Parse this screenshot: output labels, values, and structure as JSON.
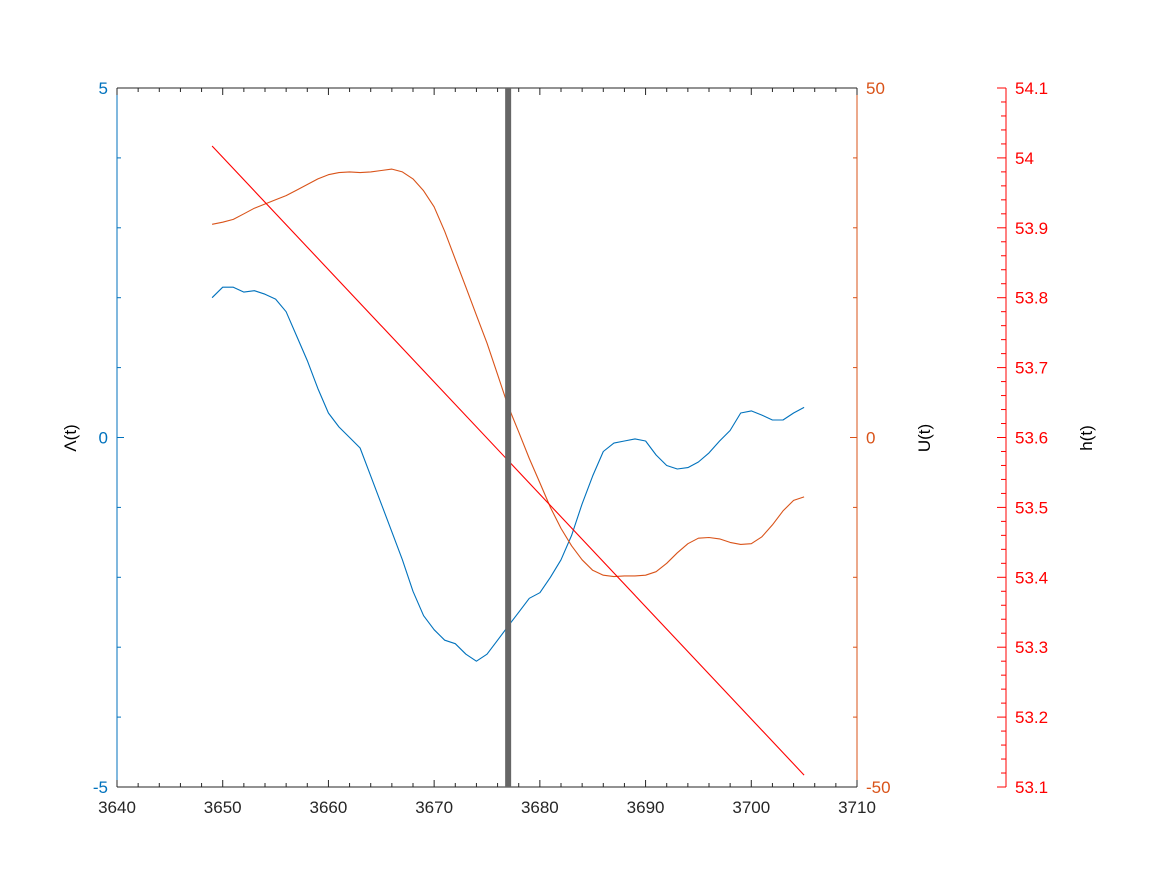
{
  "chart_data": {
    "type": "line",
    "title": "",
    "marker_x": 3677,
    "colors": {
      "lambda": "#0072BD",
      "U": "#D95319",
      "h": "#FF0000",
      "marker": "#666666",
      "xaxis": "#262626"
    },
    "x_axis": {
      "xlim": [
        3640,
        3710
      ],
      "ticks": [
        "3640",
        "3650",
        "3660",
        "3670",
        "3680",
        "3690",
        "3700",
        "3710"
      ]
    },
    "y_left": {
      "label": "Λ(t)",
      "ylim": [
        -5,
        5
      ],
      "ticks": [
        "-5",
        "0",
        "5"
      ]
    },
    "y_right1": {
      "label": "U(t)",
      "ylim": [
        -50,
        50
      ],
      "ticks": [
        "-50",
        "0",
        "50"
      ]
    },
    "y_right2": {
      "label": "h(t)",
      "ylim": [
        53.1,
        54.1
      ],
      "ticks": [
        "53.1",
        "53.2",
        "53.3",
        "53.4",
        "53.5",
        "53.6",
        "53.7",
        "53.8",
        "53.9",
        "54",
        "54.1"
      ]
    },
    "series": [
      {
        "key": "lambda",
        "axis": "left",
        "x": [
          3649,
          3650,
          3651,
          3652,
          3653,
          3654,
          3655,
          3656,
          3657,
          3658,
          3659,
          3660,
          3661,
          3662,
          3663,
          3664,
          3665,
          3666,
          3667,
          3668,
          3669,
          3670,
          3671,
          3672,
          3673,
          3674,
          3675,
          3676,
          3677,
          3678,
          3679,
          3680,
          3681,
          3682,
          3683,
          3684,
          3685,
          3686,
          3687,
          3688,
          3689,
          3690,
          3691,
          3692,
          3693,
          3694,
          3695,
          3696,
          3697,
          3698,
          3699,
          3700,
          3701,
          3702,
          3703,
          3704,
          3705
        ],
        "values": [
          2.0,
          2.15,
          2.15,
          2.08,
          2.1,
          2.05,
          1.98,
          1.8,
          1.45,
          1.1,
          0.7,
          0.35,
          0.15,
          0.0,
          -0.15,
          -0.55,
          -0.95,
          -1.35,
          -1.75,
          -2.2,
          -2.55,
          -2.75,
          -2.9,
          -2.95,
          -3.1,
          -3.2,
          -3.1,
          -2.9,
          -2.7,
          -2.5,
          -2.3,
          -2.22,
          -2.0,
          -1.75,
          -1.4,
          -0.95,
          -0.55,
          -0.2,
          -0.08,
          -0.05,
          -0.02,
          -0.05,
          -0.25,
          -0.4,
          -0.45,
          -0.43,
          -0.35,
          -0.22,
          -0.05,
          0.1,
          0.35,
          0.38,
          0.32,
          0.25,
          0.25,
          0.35,
          0.43
        ]
      },
      {
        "key": "U",
        "axis": "right1",
        "x": [
          3649,
          3650,
          3651,
          3652,
          3653,
          3654,
          3655,
          3656,
          3657,
          3658,
          3659,
          3660,
          3661,
          3662,
          3663,
          3664,
          3665,
          3666,
          3667,
          3668,
          3669,
          3670,
          3671,
          3672,
          3673,
          3674,
          3675,
          3676,
          3677,
          3678,
          3679,
          3680,
          3681,
          3682,
          3683,
          3684,
          3685,
          3686,
          3687,
          3688,
          3689,
          3690,
          3691,
          3692,
          3693,
          3694,
          3695,
          3696,
          3697,
          3698,
          3699,
          3700,
          3701,
          3702,
          3703,
          3704,
          3705
        ],
        "values": [
          30.5,
          30.8,
          31.2,
          32.0,
          32.8,
          33.4,
          34.0,
          34.6,
          35.4,
          36.2,
          37.0,
          37.6,
          37.9,
          38.0,
          37.9,
          38.0,
          38.2,
          38.4,
          38.0,
          37.0,
          35.3,
          33.0,
          29.5,
          25.5,
          21.5,
          17.5,
          13.5,
          9.0,
          4.5,
          0.8,
          -3.0,
          -6.5,
          -10.0,
          -13.0,
          -15.5,
          -17.5,
          -19.0,
          -19.7,
          -19.9,
          -19.8,
          -19.8,
          -19.7,
          -19.2,
          -18.0,
          -16.5,
          -15.2,
          -14.4,
          -14.3,
          -14.5,
          -15.0,
          -15.3,
          -15.2,
          -14.2,
          -12.5,
          -10.5,
          -9.0,
          -8.5
        ]
      },
      {
        "key": "h",
        "axis": "right2",
        "x": [
          3649,
          3705
        ],
        "values": [
          54.017,
          53.117
        ]
      }
    ]
  }
}
